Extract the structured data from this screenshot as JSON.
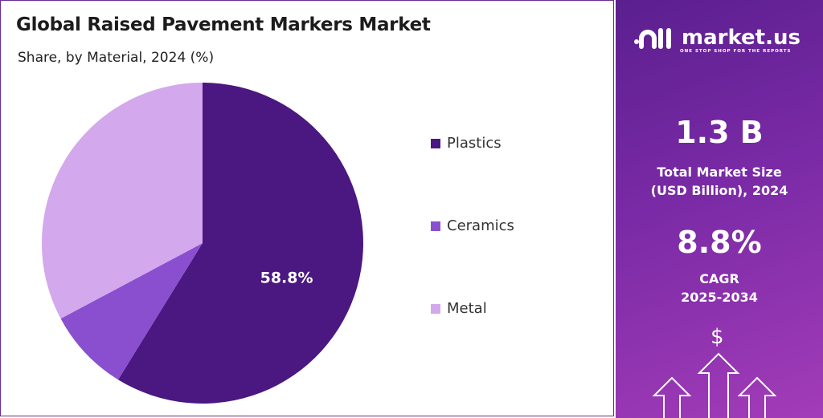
{
  "title": "Global Raised Pavement Markers Market",
  "subtitle": "Share, by Material, 2024 (%)",
  "chart_data": {
    "type": "pie",
    "title": "Global Raised Pavement Markers Market",
    "subtitle": "Share, by Material, 2024 (%)",
    "categories": [
      "Plastics",
      "Ceramics",
      "Metal"
    ],
    "values": [
      58.8,
      8.4,
      32.8
    ],
    "colors": [
      "#4b1780",
      "#8a4fcf",
      "#d3a8ec"
    ],
    "data_labels": [
      "58.8%",
      "",
      ""
    ],
    "legend_position": "right"
  },
  "sidebar": {
    "brand": "market.us",
    "tagline": "ONE STOP SHOP FOR THE REPORTS",
    "market_size": "1.3 B",
    "market_size_label": "Total Market Size (USD Billion), 2024",
    "cagr": "8.8%",
    "cagr_label": "CAGR",
    "cagr_period": "2025-2034",
    "dollar": "$"
  }
}
